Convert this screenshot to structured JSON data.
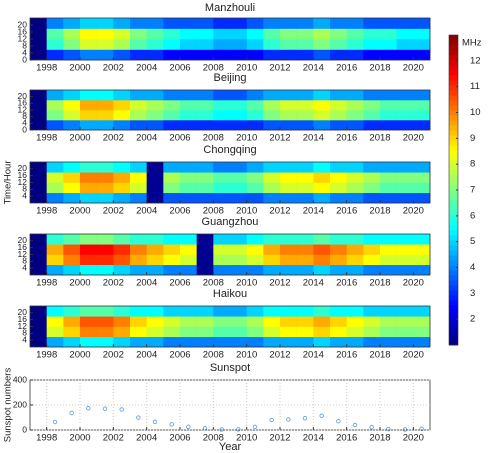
{
  "chart_data": [
    {
      "type": "heatmap",
      "title": "Manzhouli",
      "x": [
        1998,
        1999,
        2000,
        2001,
        2002,
        2003,
        2004,
        2005,
        2006,
        2007,
        2008,
        2009,
        2010,
        2011,
        2012,
        2013,
        2014,
        2015,
        2016,
        2017,
        2018,
        2019,
        2020
      ],
      "y": [
        3,
        9,
        15,
        21
      ],
      "z": [
        [
          3,
          3.5,
          4,
          4,
          3.5,
          3,
          3,
          2.5,
          2.5,
          2.5,
          2.5,
          2.5,
          2.5,
          3,
          3,
          3,
          3.5,
          3,
          3,
          2.5,
          2.5,
          2.5,
          2.5
        ],
        [
          6,
          7,
          8,
          8,
          7.5,
          6.5,
          6,
          5.5,
          5,
          5,
          4.5,
          4.5,
          5,
          6,
          6.5,
          6.5,
          7,
          6.5,
          6,
          5.5,
          5.5,
          5,
          5
        ],
        [
          6.5,
          7.5,
          8.5,
          8.5,
          8,
          7,
          6.5,
          6,
          5.5,
          5.5,
          5,
          5,
          5.5,
          6.5,
          7,
          7,
          7.5,
          7,
          6.5,
          6,
          6,
          5.5,
          5.5
        ],
        [
          4,
          4.5,
          5,
          5,
          4.5,
          4,
          4,
          3.5,
          3.5,
          3.5,
          3,
          3,
          3.5,
          4,
          4,
          4,
          4.5,
          4,
          4,
          3.5,
          3.5,
          3.5,
          3.5
        ]
      ],
      "xlim": [
        1997,
        2021
      ],
      "xticks": [
        1998,
        2000,
        2002,
        2004,
        2006,
        2008,
        2010,
        2012,
        2014,
        2016,
        2018,
        2020
      ],
      "ylim": [
        0,
        24
      ],
      "yticks": [
        0,
        4,
        8,
        12,
        16,
        20
      ],
      "colormap": "jet",
      "colorbar": {
        "label": "MHz",
        "clim": [
          1,
          13
        ],
        "ticks": [
          2,
          3,
          4,
          5,
          6,
          7,
          8,
          9,
          10,
          11,
          12
        ]
      }
    },
    {
      "type": "heatmap",
      "title": "Beijing",
      "x": [
        1998,
        1999,
        2000,
        2001,
        2002,
        2003,
        2004,
        2005,
        2006,
        2007,
        2008,
        2009,
        2010,
        2011,
        2012,
        2013,
        2014,
        2015,
        2016,
        2017,
        2018,
        2019,
        2020
      ],
      "y": [
        3,
        9,
        15,
        21
      ],
      "z": [
        [
          3.5,
          4,
          4.5,
          4.5,
          4,
          3.5,
          3.5,
          3,
          3,
          3,
          3,
          3,
          3,
          3.5,
          3.5,
          3.5,
          4,
          3.5,
          3.5,
          3,
          3,
          3,
          3
        ],
        [
          7,
          8,
          9,
          9,
          8.5,
          7.5,
          7,
          6.5,
          6,
          6,
          5.5,
          5.5,
          6,
          7,
          7.5,
          7.5,
          8,
          7.5,
          7,
          6.5,
          6,
          6,
          6
        ],
        [
          7.5,
          8.5,
          9.5,
          9.5,
          9,
          8,
          7.5,
          7,
          6.5,
          6.5,
          6,
          6,
          6.5,
          7.5,
          8,
          8,
          8.5,
          8,
          7.5,
          7,
          6.5,
          6.5,
          6.5
        ],
        [
          4.5,
          5,
          5.5,
          5.5,
          5,
          4.5,
          4.5,
          4,
          4,
          4,
          3.5,
          3.5,
          4,
          4.5,
          4.5,
          4.5,
          5,
          4.5,
          4.5,
          4,
          4,
          4,
          4
        ]
      ],
      "xlim": [
        1997,
        2021
      ],
      "xticks": [
        1998,
        2000,
        2002,
        2004,
        2006,
        2008,
        2010,
        2012,
        2014,
        2016,
        2018,
        2020
      ],
      "ylim": [
        0,
        24
      ],
      "yticks": [
        0,
        4,
        8,
        12,
        16,
        20
      ],
      "colormap": "jet"
    },
    {
      "type": "heatmap",
      "title": "Chongqing",
      "ylabel": "Time/Hour",
      "x": [
        1998,
        1999,
        2000,
        2001,
        2002,
        2003,
        2004,
        2005,
        2006,
        2007,
        2008,
        2009,
        2010,
        2011,
        2012,
        2013,
        2014,
        2015,
        2016,
        2017,
        2018,
        2019,
        2020
      ],
      "y": [
        3,
        9,
        15,
        21
      ],
      "z": [
        [
          4,
          4.5,
          5,
          5,
          4.5,
          4,
          1.2,
          3.5,
          3.5,
          3.5,
          3.5,
          3.5,
          3.5,
          4,
          4,
          4,
          4.5,
          4,
          4,
          3.5,
          3.5,
          3.5,
          3.5
        ],
        [
          7.5,
          8.5,
          9.5,
          9.5,
          9,
          8,
          1.2,
          7,
          6.5,
          6.5,
          6,
          6,
          6.5,
          7.5,
          8,
          8,
          8.5,
          8,
          7.5,
          7,
          6.5,
          6.5,
          6.5
        ],
        [
          8,
          9,
          10,
          10,
          9.5,
          8.5,
          1.2,
          7.5,
          7,
          7,
          6.5,
          6.5,
          7,
          8,
          8.5,
          8.5,
          9,
          8.5,
          8,
          7.5,
          7,
          7,
          7
        ],
        [
          5,
          5.5,
          6,
          6,
          5.5,
          5,
          1.2,
          4.5,
          4.5,
          4.5,
          4,
          4,
          4.5,
          5,
          5,
          5,
          5.5,
          5,
          5,
          4.5,
          4.5,
          4.5,
          4.5
        ]
      ],
      "xlim": [
        1997,
        2021
      ],
      "xticks": [
        1998,
        2000,
        2002,
        2004,
        2006,
        2008,
        2010,
        2012,
        2014,
        2016,
        2018,
        2020
      ],
      "ylim": [
        0,
        24
      ],
      "yticks": [
        4,
        8,
        12,
        16,
        20
      ],
      "colormap": "jet"
    },
    {
      "type": "heatmap",
      "title": "Guangzhou",
      "x": [
        1998,
        1999,
        2000,
        2001,
        2002,
        2003,
        2004,
        2005,
        2006,
        2007,
        2008,
        2009,
        2010,
        2011,
        2012,
        2013,
        2014,
        2015,
        2016,
        2017,
        2018,
        2019,
        2020
      ],
      "y": [
        3,
        9,
        15,
        21
      ],
      "z": [
        [
          4.5,
          5,
          5.5,
          5.5,
          5,
          4.5,
          4.5,
          4,
          4,
          1.2,
          4,
          4,
          4,
          4.5,
          4.5,
          4.5,
          5,
          4.5,
          4.5,
          4,
          4,
          4,
          4
        ],
        [
          9,
          10,
          11,
          11,
          10.5,
          9.5,
          9,
          8.5,
          8,
          1.2,
          7.5,
          7.5,
          8,
          9,
          9.5,
          9.5,
          10,
          9.5,
          9,
          8.5,
          8,
          8,
          8
        ],
        [
          9.5,
          10.5,
          11.5,
          11.5,
          11,
          10,
          9.5,
          9,
          8.5,
          1.2,
          8,
          8,
          8.5,
          9.5,
          10,
          10,
          10.5,
          10,
          9.5,
          9,
          8.5,
          8.5,
          8.5
        ],
        [
          6,
          6.5,
          7,
          7,
          6.5,
          6,
          6,
          5.5,
          5.5,
          1.2,
          5,
          5,
          5.5,
          6,
          6,
          6,
          6.5,
          6,
          6,
          5.5,
          5.5,
          5.5,
          5.5
        ]
      ],
      "xlim": [
        1997,
        2021
      ],
      "xticks": [
        1998,
        2000,
        2002,
        2004,
        2006,
        2008,
        2010,
        2012,
        2014,
        2016,
        2018,
        2020
      ],
      "ylim": [
        0,
        24
      ],
      "yticks": [
        4,
        8,
        12,
        16,
        20
      ],
      "colormap": "jet"
    },
    {
      "type": "heatmap",
      "title": "Haikou",
      "x": [
        1998,
        1999,
        2000,
        2001,
        2002,
        2003,
        2004,
        2005,
        2006,
        2007,
        2008,
        2009,
        2010,
        2011,
        2012,
        2013,
        2014,
        2015,
        2016,
        2017,
        2018,
        2019,
        2020
      ],
      "y": [
        3,
        9,
        15,
        21
      ],
      "z": [
        [
          4.5,
          5,
          5.5,
          5.5,
          5,
          4.5,
          4.5,
          4,
          4,
          4,
          4,
          4,
          4,
          4.5,
          4.5,
          4.5,
          5,
          4.5,
          4.5,
          4,
          4,
          4,
          4
        ],
        [
          8,
          9,
          10,
          10,
          9.5,
          8.5,
          8,
          7.5,
          7,
          7,
          6.5,
          6.5,
          7,
          8,
          8.5,
          8.5,
          9,
          8.5,
          8,
          7.5,
          7,
          7,
          7
        ],
        [
          8.5,
          9.5,
          10.5,
          10.5,
          10,
          9,
          8.5,
          8,
          7.5,
          7.5,
          7,
          7,
          7.5,
          8.5,
          9,
          9,
          9.5,
          9,
          8.5,
          8,
          7.5,
          7.5,
          7.5
        ],
        [
          5.5,
          6,
          6.5,
          6.5,
          6,
          5.5,
          5.5,
          5,
          5,
          5,
          4.5,
          4.5,
          5,
          5.5,
          5.5,
          5.5,
          6,
          5.5,
          5.5,
          5,
          5,
          5,
          5
        ]
      ],
      "xlim": [
        1997,
        2021
      ],
      "xticks": [
        1998,
        2000,
        2002,
        2004,
        2006,
        2008,
        2010,
        2012,
        2014,
        2016,
        2018,
        2020
      ],
      "ylim": [
        0,
        24
      ],
      "yticks": [
        4,
        8,
        12,
        16,
        20
      ],
      "colormap": "jet"
    },
    {
      "type": "scatter",
      "title": "Sunspot",
      "xlabel": "Year",
      "ylabel": "Sunspot numbers",
      "color": "#5b9bd5",
      "x": [
        1998.5,
        1999.5,
        2000.5,
        2001.5,
        2002.5,
        2003.5,
        2004.5,
        2005.5,
        2006.5,
        2007.5,
        2008.5,
        2009.5,
        2010.5,
        2011.5,
        2012.5,
        2013.5,
        2014.5,
        2015.5,
        2016.5,
        2017.5,
        2018.5,
        2019.5,
        2020.5
      ],
      "values": [
        64,
        136,
        174,
        170,
        164,
        99,
        65,
        45,
        25,
        13,
        4,
        5,
        25,
        80,
        84,
        94,
        114,
        70,
        40,
        22,
        7,
        4,
        9
      ],
      "xlim": [
        1997,
        2021
      ],
      "xticks": [
        1998,
        2000,
        2002,
        2004,
        2006,
        2008,
        2010,
        2012,
        2014,
        2016,
        2018,
        2020
      ],
      "ylim": [
        0,
        400
      ],
      "yticks": [
        0,
        200,
        400
      ],
      "grid": true
    }
  ]
}
